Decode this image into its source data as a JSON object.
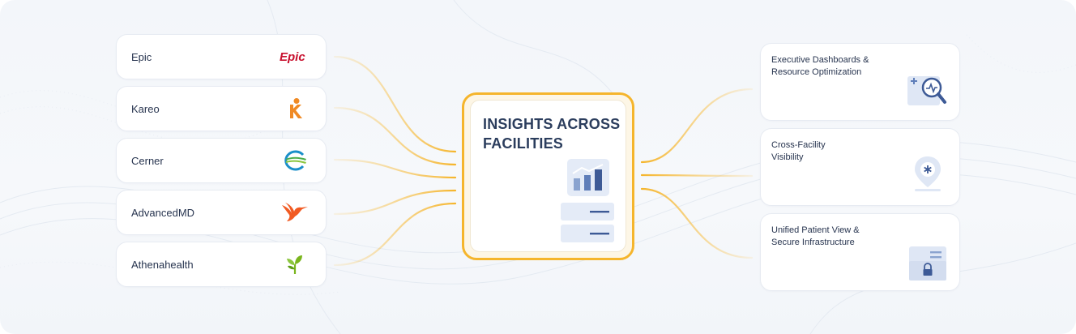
{
  "sources": [
    {
      "label": "Epic",
      "logo": "epic-logo",
      "logo_text": "Epic"
    },
    {
      "label": "Kareo",
      "logo": "kareo-logo"
    },
    {
      "label": "Cerner",
      "logo": "cerner-logo"
    },
    {
      "label": "AdvancedMD",
      "logo": "advancedmd-logo"
    },
    {
      "label": "Athenahealth",
      "logo": "athenahealth-logo"
    }
  ],
  "hub": {
    "title": "INSIGHTS ACROSS FACILITIES",
    "icons": [
      "bar-chart-icon",
      "list-panel-icon"
    ]
  },
  "outputs": [
    {
      "label": "Executive Dashboards &\nResource Optimization",
      "icon": "dashboard-magnifier-icon"
    },
    {
      "label": "Cross-Facility\nVisibility",
      "icon": "location-pin-icon"
    },
    {
      "label": "Unified Patient View &\nSecure Infrastructure",
      "icon": "secure-folder-icon"
    }
  ],
  "colors": {
    "accent": "#f5b52c",
    "connector": "#f7c862",
    "text": "#27344f",
    "title": "#2b3d5d",
    "icon_blue": "#3d5a96",
    "icon_light": "#dfe7f5",
    "epic_red": "#c8102e",
    "kareo_orange": "#f08a24",
    "advancedmd_orange": "#f15a22",
    "athena_green": "#7ab51d"
  }
}
